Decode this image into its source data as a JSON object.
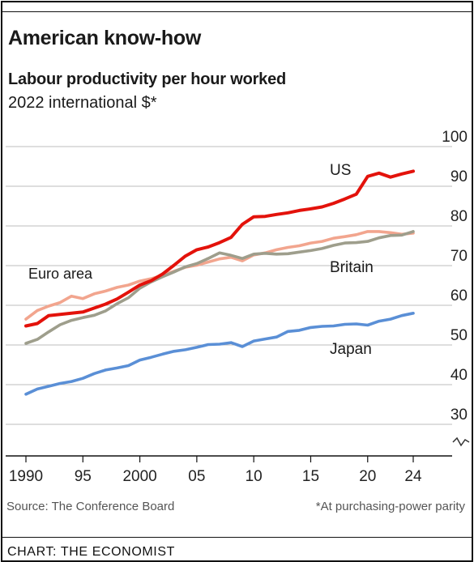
{
  "header": {
    "title": "American know-how",
    "subtitle": "Labour productivity per hour worked",
    "unit": "2022 international $*"
  },
  "footer": {
    "source": "Source: The Conference Board",
    "footnote": "*At purchasing-power parity",
    "credit": "CHART: THE ECONOMIST"
  },
  "chart_data": {
    "type": "line",
    "title": "American know-how",
    "subtitle": "Labour productivity per hour worked",
    "ylabel": "2022 international $*",
    "xlim": [
      1990,
      2024
    ],
    "ylim": [
      25,
      100
    ],
    "y_axis_break": true,
    "grid": true,
    "y_ticks": [
      30,
      40,
      50,
      60,
      70,
      80,
      90,
      100
    ],
    "y_tick_labels": [
      "30",
      "40",
      "50",
      "60",
      "70",
      "80",
      "90",
      "100"
    ],
    "x_ticks": [
      1990,
      1995,
      2000,
      2005,
      2010,
      2015,
      2020,
      2024
    ],
    "x_tick_labels": [
      "1990",
      "95",
      "2000",
      "05",
      "10",
      "15",
      "20",
      "24"
    ],
    "x": [
      1990,
      1991,
      1992,
      1993,
      1994,
      1995,
      1996,
      1997,
      1998,
      1999,
      2000,
      2001,
      2002,
      2003,
      2004,
      2005,
      2006,
      2007,
      2008,
      2009,
      2010,
      2011,
      2012,
      2013,
      2014,
      2015,
      2016,
      2017,
      2018,
      2019,
      2020,
      2021,
      2022,
      2023,
      2024
    ],
    "series": [
      {
        "name": "US",
        "color": "#e3120b",
        "values": [
          54.8,
          55.4,
          57.4,
          57.7,
          58.0,
          58.3,
          59.3,
          60.3,
          61.6,
          63.3,
          65.1,
          66.2,
          67.9,
          70.1,
          72.4,
          74.0,
          74.7,
          75.8,
          77.1,
          80.4,
          82.3,
          82.4,
          82.9,
          83.3,
          83.9,
          84.3,
          84.8,
          85.7,
          86.8,
          88.0,
          92.5,
          93.3,
          92.3,
          93.1,
          93.8
        ]
      },
      {
        "name": "Euro area",
        "color": "#f2a58e",
        "values": [
          56.5,
          58.7,
          59.8,
          60.7,
          62.3,
          61.7,
          62.9,
          63.6,
          64.5,
          65.1,
          66.1,
          66.7,
          67.6,
          68.6,
          69.6,
          70.1,
          70.9,
          71.7,
          72.1,
          71.2,
          72.7,
          73.2,
          74.0,
          74.6,
          75.0,
          75.7,
          76.1,
          76.9,
          77.3,
          77.8,
          78.6,
          78.6,
          78.3,
          77.9,
          78.2
        ]
      },
      {
        "name": "Britain",
        "color": "#9e9e8c",
        "values": [
          50.4,
          51.4,
          53.3,
          55.1,
          56.2,
          56.9,
          57.5,
          58.6,
          60.4,
          61.9,
          64.3,
          65.9,
          67.2,
          68.4,
          69.7,
          70.5,
          71.8,
          73.2,
          72.6,
          71.8,
          72.9,
          73.1,
          72.9,
          73.0,
          73.4,
          73.8,
          74.3,
          75.1,
          75.7,
          75.8,
          76.1,
          77.0,
          77.6,
          77.7,
          78.6
        ]
      },
      {
        "name": "Japan",
        "color": "#5a8fd6",
        "values": [
          37.6,
          38.9,
          39.6,
          40.3,
          40.8,
          41.6,
          42.8,
          43.7,
          44.2,
          44.8,
          46.2,
          46.9,
          47.7,
          48.4,
          48.8,
          49.4,
          50.1,
          50.2,
          50.6,
          49.6,
          51.0,
          51.5,
          52.0,
          53.4,
          53.7,
          54.4,
          54.7,
          54.8,
          55.2,
          55.3,
          55.0,
          56.0,
          56.5,
          57.4,
          58.0
        ]
      }
    ],
    "annotations": [
      {
        "text": "US",
        "series": "US"
      },
      {
        "text": "Euro area",
        "series": "Euro area"
      },
      {
        "text": "Britain",
        "series": "Britain"
      },
      {
        "text": "Japan",
        "series": "Japan"
      }
    ]
  }
}
